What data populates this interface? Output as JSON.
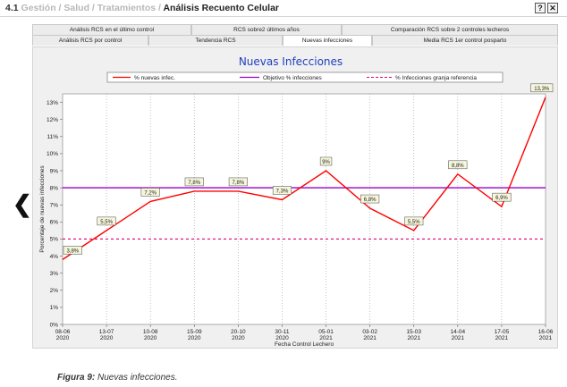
{
  "header": {
    "section_number": "4.1",
    "crumb_1": "Gestión",
    "crumb_2": "Salud / Tratamientos",
    "separator": "/",
    "current": "Análisis Recuento Celular",
    "help_label": "?",
    "close_label": "✕"
  },
  "tabs": {
    "row_top": [
      {
        "label": "Análisis RCS en el último control"
      },
      {
        "label": "RCS sobre2 últimos años"
      },
      {
        "label": "Comparación RCS sobre 2 controles lecheros"
      }
    ],
    "row_bottom": [
      {
        "label": "Análisis RCS por control"
      },
      {
        "label": "Tendencia RCS"
      },
      {
        "label": "Nuevas infecciones",
        "active": true
      },
      {
        "label": "Media RCS 1er control posparto"
      }
    ]
  },
  "nav": {
    "prev_icon": "chevron-left-icon",
    "prev_glyph": "❮"
  },
  "colors": {
    "series": "#ff0000",
    "objective": "#9900cc",
    "reference": "#e0007a",
    "plot_bg": "#ffffff",
    "panel_bg": "#f0f0f0"
  },
  "chart_data": {
    "type": "line",
    "title": "Nuevas Infecciones",
    "xlabel": "Fecha Control Lechero",
    "ylabel": "Porcentaje de nuevas infecciones",
    "categories": [
      [
        "08-06",
        "2020"
      ],
      [
        "13-07",
        "2020"
      ],
      [
        "10-08",
        "2020"
      ],
      [
        "15-09",
        "2020"
      ],
      [
        "20-10",
        "2020"
      ],
      [
        "30-11",
        "2020"
      ],
      [
        "05-01",
        "2021"
      ],
      [
        "03-02",
        "2021"
      ],
      [
        "15-03",
        "2021"
      ],
      [
        "14-04",
        "2021"
      ],
      [
        "17-05",
        "2021"
      ],
      [
        "16-06",
        "2021"
      ]
    ],
    "series": [
      {
        "name": "% nuevas infec.",
        "values": [
          3.8,
          5.5,
          7.2,
          7.8,
          7.8,
          7.3,
          9.0,
          6.8,
          5.5,
          8.8,
          6.9,
          13.3
        ]
      }
    ],
    "value_labels": [
      "3,8%",
      "5,5%",
      "7,2%",
      "7,8%",
      "7,8%",
      "7,3%",
      "9%",
      "6,8%",
      "5,5%",
      "8,8%",
      "6,9%",
      "13,3%"
    ],
    "reference_lines": [
      {
        "name": "Objetivo % infecciones",
        "value": 8,
        "style": "solid"
      },
      {
        "name": "% Infecciones granja referencia",
        "value": 5,
        "style": "dashed"
      }
    ],
    "yticks": [
      "0%",
      "1%",
      "2%",
      "3%",
      "4%",
      "5%",
      "6%",
      "7%",
      "8%",
      "9%",
      "10%",
      "11%",
      "12%",
      "13%"
    ],
    "ylim": [
      0,
      13.5
    ],
    "grid": "vertical dotted",
    "legend_position": "top"
  },
  "caption": {
    "figure": "Figura 9:",
    "text": "Nuevas infecciones."
  }
}
